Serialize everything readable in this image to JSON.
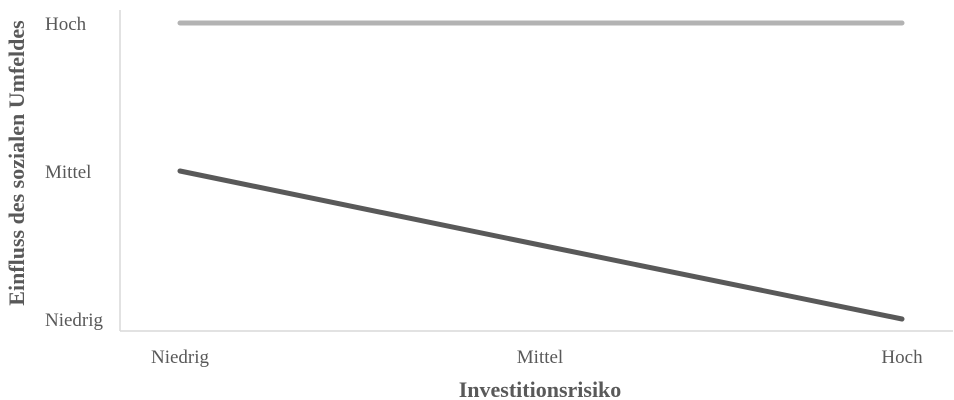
{
  "chart_data": {
    "type": "line",
    "xlabel": "Investitionsrisiko",
    "ylabel": "Einfluss des sozialen Umfeldes",
    "categories": [
      "Niedrig",
      "Mittel",
      "Hoch"
    ],
    "y_categories": [
      "Niedrig",
      "Mittel",
      "Hoch"
    ],
    "ylim": [
      0,
      2
    ],
    "grid": false,
    "legend": "none",
    "series": [
      {
        "values": [
          2,
          2,
          2
        ],
        "color": "#b3b3b3"
      },
      {
        "values": [
          1,
          0.5,
          0
        ],
        "color": "#595959"
      }
    ],
    "axis_color": "#d9d9d9",
    "text_color": "#595959"
  }
}
